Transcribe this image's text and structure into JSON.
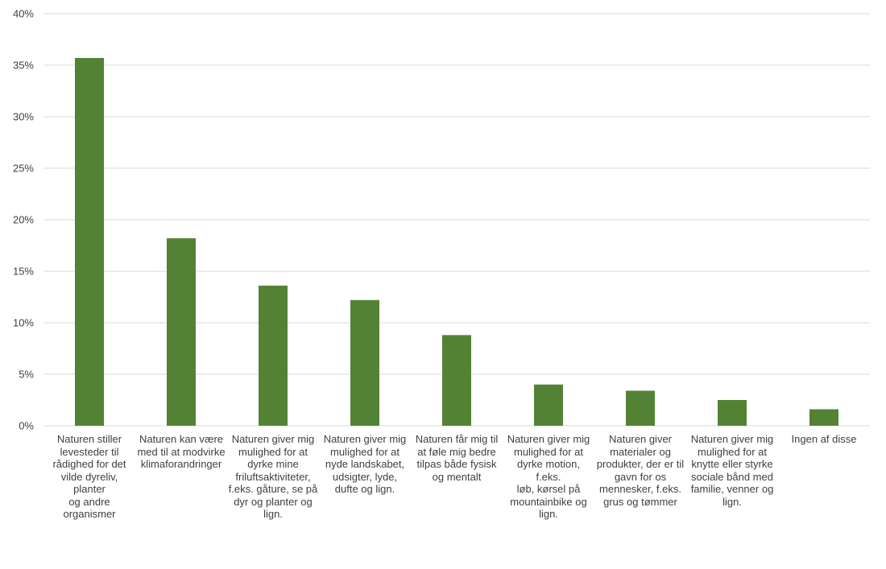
{
  "chart_data": {
    "type": "bar",
    "title": "",
    "xlabel": "",
    "ylabel": "",
    "ylim": [
      0,
      40
    ],
    "yticks": [
      0,
      5,
      10,
      15,
      20,
      25,
      30,
      35,
      40
    ],
    "ytick_labels": [
      "0%",
      "5%",
      "10%",
      "15%",
      "20%",
      "25%",
      "30%",
      "35%",
      "40%"
    ],
    "grid": true,
    "bar_color": "#548235",
    "grid_color": "#d9d9d9",
    "categories": [
      "Naturen stiller levesteder til rådighed for det vilde dyreliv, planter og andre organismer",
      "Naturen kan være med til at modvirke klimaforandringer",
      "Naturen giver mig mulighed for at dyrke mine friluftsaktiviteter, f.eks. gåture, se på dyr og planter og lign.",
      "Naturen giver mig mulighed for at nyde landskabet, udsigter, lyde, dufte og lign.",
      "Naturen får mig til at føle mig bedre tilpas både fysisk og mentalt",
      "Naturen giver mig mulighed for at dyrke motion, f.eks. løb, kørsel på mountainbike og lign.",
      "Naturen giver materialer og produkter, der er til gavn for os mennesker, f.eks. grus og tømmer",
      "Naturen giver mig mulighed for at knytte eller styrke sociale bånd med familie, venner og lign.",
      "Ingen af disse"
    ],
    "category_lines": [
      "Naturen stiller\nlevesteder til\nrådighed for det\nvilde dyreliv, planter\nog andre\norganismer",
      "Naturen kan være\nmed til at modvirke\nklimaforandringer",
      "Naturen giver mig\nmulighed for at\ndyrke mine\nfriluftsaktiviteter,\nf.eks. gåture, se på\ndyr og planter og\nlign.",
      "Naturen giver mig\nmulighed for at\nnyde landskabet,\nudsigter, lyde,\ndufte og lign.",
      "Naturen får mig til\nat føle mig bedre\ntilpas både fysisk\nog mentalt",
      "Naturen giver mig\nmulighed for at\ndyrke motion, f.eks.\nløb, kørsel på\nmountainbike og\nlign.",
      "Naturen giver\nmaterialer og\nprodukter, der er til\ngavn for os\nmennesker, f.eks.\ngrus og tømmer",
      "Naturen giver mig\nmulighed for at\nknytte eller styrke\nsociale bånd med\nfamilie, venner og\nlign.",
      "Ingen af disse"
    ],
    "values": [
      35.7,
      18.2,
      13.6,
      12.2,
      8.8,
      4.0,
      3.4,
      2.5,
      1.6
    ]
  }
}
